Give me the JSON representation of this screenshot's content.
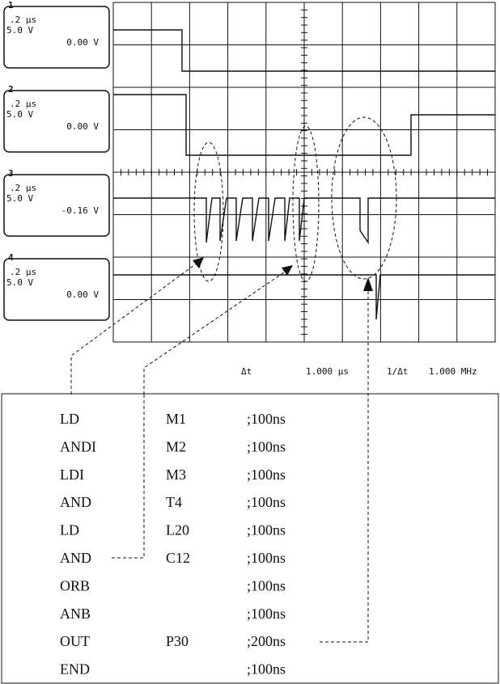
{
  "channels": [
    {
      "id": "1",
      "time": ".2 μs",
      "volts": "5.0 V",
      "offset": "0.00 V"
    },
    {
      "id": "2",
      "time": ".2 μs",
      "volts": "5.0 V",
      "offset": "0.00 V"
    },
    {
      "id": "3",
      "time": ".2 μs",
      "volts": "5.0 V",
      "offset": "-0.16 V"
    },
    {
      "id": "4",
      "time": ".2 μs",
      "volts": "5.0 V",
      "offset": "0.00 V"
    }
  ],
  "readout": {
    "delta_t_label": "Δt",
    "delta_t": "1.000 μs",
    "inverse_label": "1/Δt",
    "frequency": "1.000 MHz"
  },
  "program": {
    "rows": [
      {
        "op": "LD",
        "operand": "M1",
        "time": ";100ns"
      },
      {
        "op": "ANDI",
        "operand": "M2",
        "time": ";100ns"
      },
      {
        "op": "LDI",
        "operand": "M3",
        "time": ";100ns"
      },
      {
        "op": "AND",
        "operand": "T4",
        "time": ";100ns"
      },
      {
        "op": "LD",
        "operand": "L20",
        "time": ";100ns"
      },
      {
        "op": "AND",
        "operand": "C12",
        "time": ";100ns"
      },
      {
        "op": "ORB",
        "time": ";100ns"
      },
      {
        "op": "ANB",
        "time": ";100ns"
      },
      {
        "op": "OUT",
        "operand": "P30",
        "time": ";200ns"
      },
      {
        "op": "END",
        "time": ";100ns"
      }
    ]
  }
}
